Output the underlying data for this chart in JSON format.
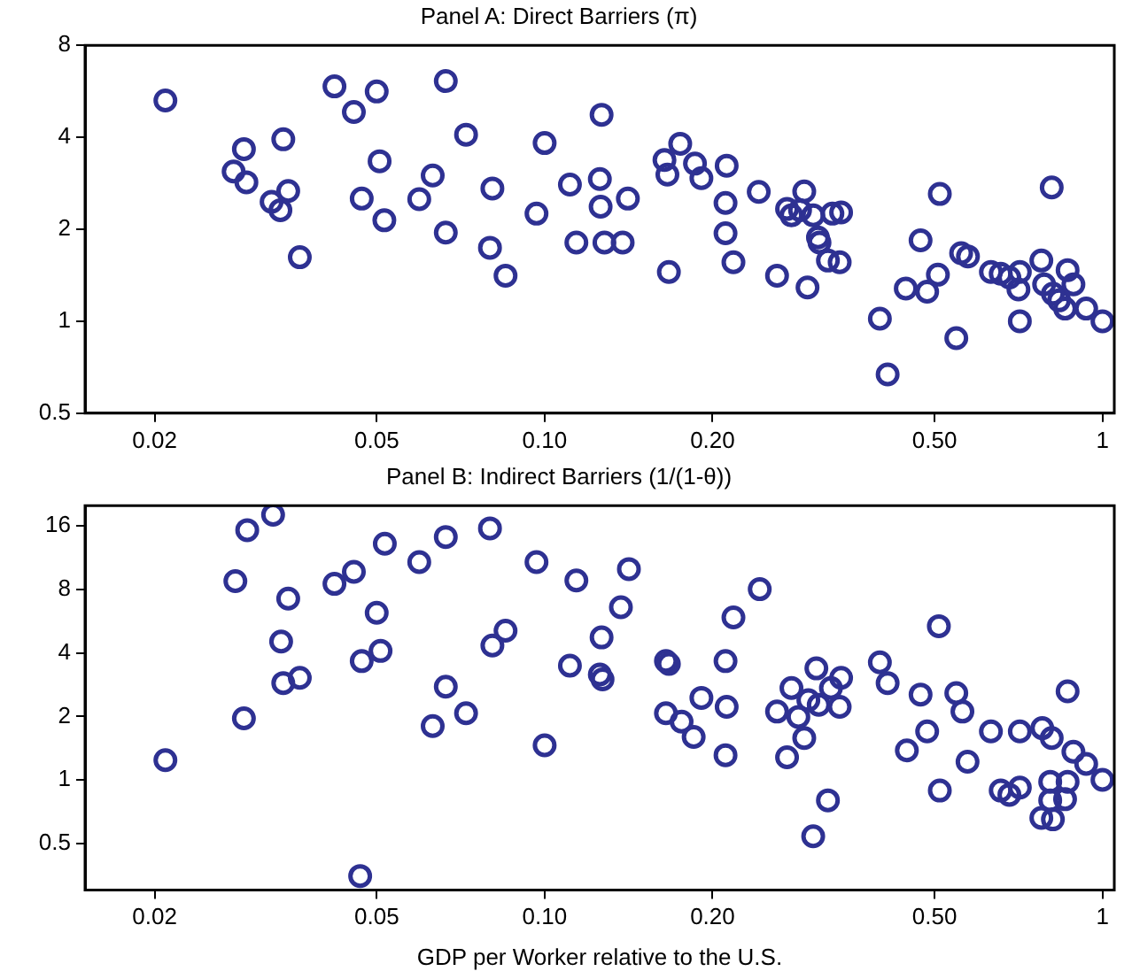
{
  "chart_data": [
    {
      "type": "scatter",
      "title": "Panel A: Direct Barriers (π)",
      "log": "xy",
      "marker": "circle",
      "color": "#2e3192",
      "grid": false,
      "xlim": [
        0.015,
        1.05
      ],
      "xticks": [
        0.02,
        0.05,
        {
          "value": 0.1,
          "label": "0.10"
        },
        {
          "value": 0.2,
          "label": "0.20"
        },
        {
          "value": 0.5,
          "label": "0.50"
        },
        1
      ],
      "ylim": [
        0.5,
        8
      ],
      "yticks": [
        0.5,
        1,
        2,
        4,
        8
      ],
      "x": [
        0.0209,
        0.0277,
        0.0289,
        0.0292,
        0.0324,
        0.0336,
        0.034,
        0.0347,
        0.0364,
        0.042,
        0.0455,
        0.047,
        0.05,
        0.0506,
        0.0516,
        0.0596,
        0.063,
        0.0665,
        0.0665,
        0.0723,
        0.0798,
        0.0806,
        0.0851,
        0.0967,
        0.1,
        0.111,
        0.114,
        0.1265,
        0.1256,
        0.126,
        0.141,
        0.128,
        0.138,
        0.164,
        0.166,
        0.175,
        0.186,
        0.191,
        0.212,
        0.211,
        0.211,
        0.218,
        0.167,
        0.242,
        0.261,
        0.272,
        0.292,
        0.277,
        0.287,
        0.303,
        0.309,
        0.311,
        0.328,
        0.34,
        0.322,
        0.338,
        0.296,
        0.399,
        0.412,
        0.444,
        0.472,
        0.485,
        0.507,
        0.511,
        0.547,
        0.558,
        0.574,
        0.631,
        0.657,
        0.681,
        0.711,
        0.707,
        0.711,
        0.777,
        0.811,
        0.786,
        0.815,
        0.836,
        0.866,
        0.887,
        0.857,
        0.935,
        1.0
      ],
      "values": [
        5.28,
        3.09,
        3.66,
        2.85,
        2.46,
        2.31,
        3.94,
        2.67,
        1.62,
        5.87,
        4.84,
        2.52,
        5.65,
        3.34,
        2.14,
        2.51,
        3.0,
        6.11,
        1.95,
        4.08,
        1.74,
        2.72,
        1.41,
        2.25,
        3.83,
        2.8,
        1.81,
        4.74,
        2.92,
        2.37,
        2.52,
        1.81,
        1.81,
        3.37,
        3.02,
        3.81,
        3.28,
        2.94,
        3.23,
        2.44,
        1.94,
        1.56,
        1.45,
        2.65,
        1.41,
        2.33,
        2.66,
        2.22,
        2.31,
        2.22,
        1.88,
        1.81,
        2.25,
        2.27,
        1.58,
        1.56,
        1.29,
        1.02,
        0.67,
        1.28,
        1.84,
        1.25,
        1.42,
        2.61,
        0.88,
        1.67,
        1.63,
        1.45,
        1.43,
        1.39,
        1.45,
        1.27,
        1.0,
        1.58,
        2.74,
        1.32,
        1.23,
        1.17,
        1.47,
        1.32,
        1.1,
        1.1,
        1.0
      ]
    },
    {
      "type": "scatter",
      "title": "Panel B: Indirect Barriers (1/(1-θ))",
      "xlabel": "GDP per Worker relative to the U.S.",
      "log": "xy",
      "marker": "circle",
      "color": "#2e3192",
      "grid": false,
      "xlim": [
        0.015,
        1.05
      ],
      "xticks": [
        0.02,
        0.05,
        {
          "value": 0.1,
          "label": "0.10"
        },
        {
          "value": 0.2,
          "label": "0.20"
        },
        {
          "value": 0.5,
          "label": "0.50"
        },
        1
      ],
      "ylim": [
        0.3,
        20
      ],
      "yticks": [
        0.5,
        1,
        2,
        4,
        8,
        16
      ],
      "x": [
        0.0209,
        0.0279,
        0.0289,
        0.0293,
        0.0326,
        0.0337,
        0.034,
        0.0347,
        0.0364,
        0.042,
        0.0455,
        0.0467,
        0.047,
        0.05,
        0.0508,
        0.0517,
        0.0596,
        0.063,
        0.0665,
        0.0665,
        0.0723,
        0.0798,
        0.0806,
        0.0851,
        0.0967,
        0.1,
        0.111,
        0.114,
        0.1416,
        0.137,
        0.1265,
        0.1256,
        0.127,
        0.165,
        0.167,
        0.165,
        0.176,
        0.185,
        0.191,
        0.211,
        0.212,
        0.211,
        0.218,
        0.243,
        0.261,
        0.272,
        0.277,
        0.285,
        0.292,
        0.297,
        0.307,
        0.31,
        0.326,
        0.34,
        0.338,
        0.322,
        0.303,
        0.399,
        0.412,
        0.472,
        0.446,
        0.485,
        0.509,
        0.511,
        0.547,
        0.561,
        0.573,
        0.631,
        0.657,
        0.681,
        0.711,
        0.711,
        0.78,
        0.811,
        0.866,
        0.887,
        0.935,
        0.806,
        0.866,
        0.806,
        0.857,
        0.777,
        0.815,
        1.0
      ],
      "values": [
        1.24,
        8.77,
        1.96,
        15.3,
        18.1,
        4.53,
        2.88,
        7.24,
        3.05,
        8.51,
        9.71,
        0.35,
        3.66,
        6.21,
        4.09,
        13.2,
        10.8,
        1.8,
        14.2,
        2.77,
        2.07,
        15.6,
        4.34,
        5.1,
        10.8,
        1.46,
        3.48,
        8.83,
        10.0,
        6.59,
        4.74,
        3.16,
        3.0,
        3.66,
        3.55,
        2.07,
        1.89,
        1.6,
        2.45,
        3.66,
        2.22,
        1.31,
        5.9,
        8.03,
        2.11,
        1.28,
        2.73,
        1.99,
        1.58,
        2.39,
        3.38,
        2.27,
        2.73,
        3.05,
        2.22,
        0.8,
        0.54,
        3.61,
        2.88,
        2.54,
        1.38,
        1.7,
        5.36,
        0.89,
        2.58,
        2.11,
        1.22,
        1.7,
        0.89,
        0.85,
        1.7,
        0.92,
        1.76,
        1.58,
        2.63,
        1.36,
        1.19,
        0.98,
        0.98,
        0.8,
        0.81,
        0.66,
        0.65,
        1.0
      ]
    }
  ]
}
